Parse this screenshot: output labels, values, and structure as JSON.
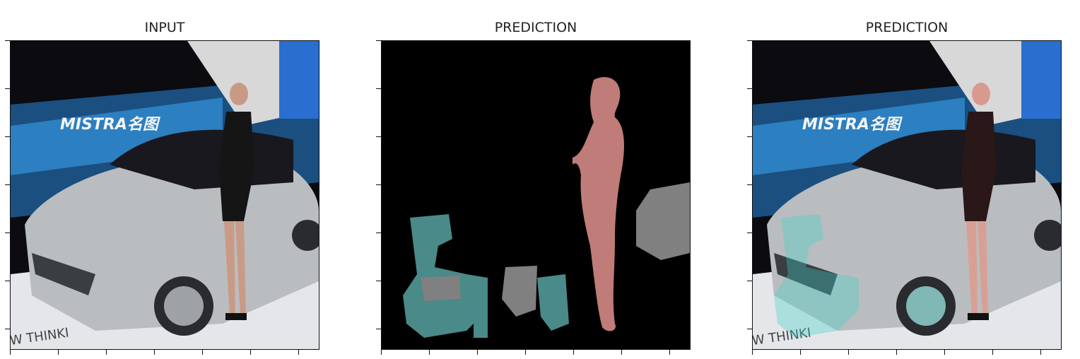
{
  "panels": [
    {
      "title": "INPUT"
    },
    {
      "title": "PREDICTION"
    },
    {
      "title": "PREDICTION"
    }
  ],
  "photo": {
    "banner_text": "MISTRA名图",
    "floor_text": "W THINKI"
  },
  "colors": {
    "person": "#c07c78",
    "car": "#4a8a88",
    "wall": "#808080",
    "background": "#000000",
    "banner_blue": "#1a6fb0"
  }
}
